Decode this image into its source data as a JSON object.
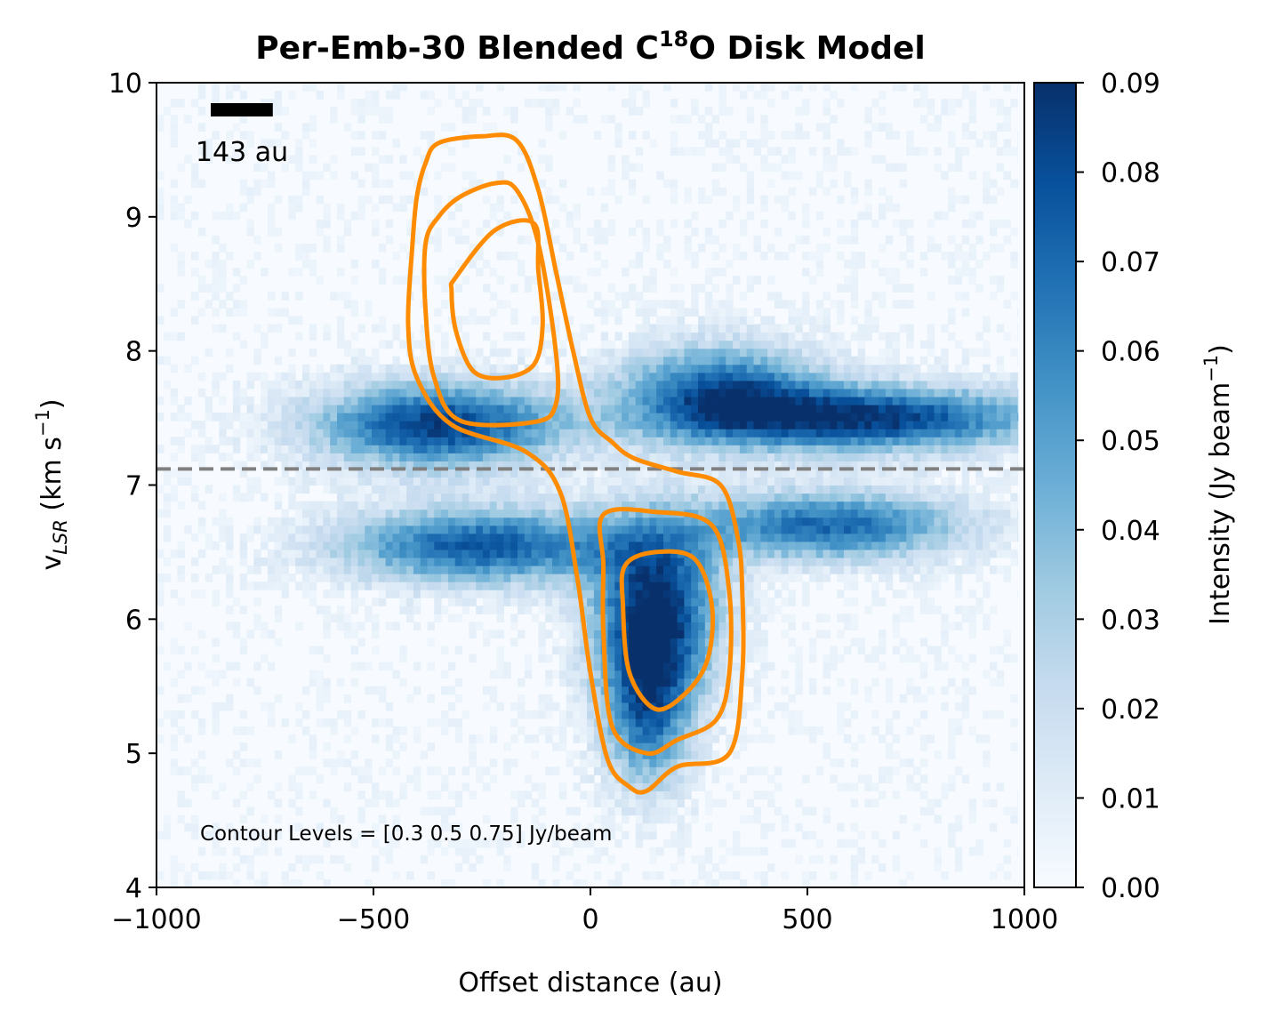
{
  "chart_data": {
    "type": "heatmap",
    "title": {
      "prefix": "Per-Emb-30 Blended C",
      "superscript": "18",
      "suffix": "O Disk Model"
    },
    "xlabel": "Offset distance (au)",
    "ylabel": {
      "main": "v",
      "subscript": "LSR",
      "unit_open": " (km s",
      "unit_exp": "−1",
      "unit_close": ")"
    },
    "xlim": [
      -1000,
      1000
    ],
    "ylim": [
      4,
      10
    ],
    "x_ticks": [
      {
        "value": -1000,
        "label": "−1000"
      },
      {
        "value": -500,
        "label": "−500"
      },
      {
        "value": 0,
        "label": "0"
      },
      {
        "value": 500,
        "label": "500"
      },
      {
        "value": 1000,
        "label": "1000"
      }
    ],
    "y_ticks": [
      {
        "value": 4,
        "label": "4"
      },
      {
        "value": 5,
        "label": "5"
      },
      {
        "value": 6,
        "label": "6"
      },
      {
        "value": 7,
        "label": "7"
      },
      {
        "value": 8,
        "label": "8"
      },
      {
        "value": 9,
        "label": "9"
      },
      {
        "value": 10,
        "label": "10"
      }
    ],
    "colorbar": {
      "label_main": "Intensity (Jy beam",
      "label_exp": "−1",
      "label_close": ")",
      "colormap": "Blues",
      "range": [
        0,
        0.09
      ],
      "ticks": [
        {
          "value": 0.0,
          "label": "0.00"
        },
        {
          "value": 0.01,
          "label": "0.01"
        },
        {
          "value": 0.02,
          "label": "0.02"
        },
        {
          "value": 0.03,
          "label": "0.03"
        },
        {
          "value": 0.04,
          "label": "0.04"
        },
        {
          "value": 0.05,
          "label": "0.05"
        },
        {
          "value": 0.06,
          "label": "0.06"
        },
        {
          "value": 0.07,
          "label": "0.07"
        },
        {
          "value": 0.08,
          "label": "0.08"
        },
        {
          "value": 0.09,
          "label": "0.09"
        }
      ]
    },
    "systemic_velocity": {
      "value": 7.12,
      "style": "dashed",
      "color": "#808080"
    },
    "scale_bar": {
      "length_au": 143,
      "label": "143 au"
    },
    "annotation": "Contour Levels = [0.3  0.5  0.75] Jy/beam",
    "contour_levels": [
      0.3,
      0.5,
      0.75
    ],
    "contour_color": "#ff8c00",
    "emission_components": [
      {
        "name": "upper-left lobe",
        "x": -350,
        "y": 7.45,
        "peak": 0.085
      },
      {
        "name": "upper-right lobe",
        "x": 650,
        "y": 7.5,
        "peak": 0.085
      },
      {
        "name": "upper-right bump",
        "x": 300,
        "y": 7.7,
        "peak": 0.07
      },
      {
        "name": "lower-left lobe",
        "x": -250,
        "y": 6.55,
        "peak": 0.075
      },
      {
        "name": "lower-right lobe",
        "x": 550,
        "y": 6.7,
        "peak": 0.07
      },
      {
        "name": "central peak",
        "x": 150,
        "y": 6.05,
        "peak": 0.09
      },
      {
        "name": "redshifted tail",
        "x": 130,
        "y": 5.3,
        "peak": 0.06
      }
    ],
    "contours": [
      {
        "level": 0.3,
        "points": [
          [
            -350,
            9.55
          ],
          [
            -250,
            9.6
          ],
          [
            -170,
            9.57
          ],
          [
            -120,
            9.2
          ],
          [
            -80,
            8.6
          ],
          [
            -40,
            8.0
          ],
          [
            0,
            7.5
          ],
          [
            50,
            7.32
          ],
          [
            100,
            7.2
          ],
          [
            200,
            7.1
          ],
          [
            300,
            7.0
          ],
          [
            340,
            6.6
          ],
          [
            350,
            6.2
          ],
          [
            350,
            5.6
          ],
          [
            320,
            5.0
          ],
          [
            200,
            4.9
          ],
          [
            130,
            4.72
          ],
          [
            90,
            4.75
          ],
          [
            40,
            4.95
          ],
          [
            0,
            5.6
          ],
          [
            -30,
            6.3
          ],
          [
            -70,
            6.95
          ],
          [
            -150,
            7.25
          ],
          [
            -320,
            7.45
          ],
          [
            -400,
            7.8
          ],
          [
            -420,
            8.2
          ],
          [
            -410,
            8.8
          ],
          [
            -400,
            9.15
          ],
          [
            -380,
            9.4
          ]
        ]
      },
      {
        "level": 0.5,
        "points": [
          [
            -300,
            9.15
          ],
          [
            -220,
            9.25
          ],
          [
            -170,
            9.2
          ],
          [
            -120,
            8.8
          ],
          [
            -80,
            8.0
          ],
          [
            -80,
            7.6
          ],
          [
            -130,
            7.47
          ],
          [
            -300,
            7.48
          ],
          [
            -360,
            7.8
          ],
          [
            -380,
            8.3
          ],
          [
            -380,
            8.8
          ],
          [
            -350,
            9.0
          ]
        ],
        "points2": [
          [
            30,
            6.78
          ],
          [
            150,
            6.8
          ],
          [
            280,
            6.7
          ],
          [
            320,
            6.2
          ],
          [
            320,
            5.6
          ],
          [
            290,
            5.25
          ],
          [
            200,
            5.1
          ],
          [
            130,
            5.0
          ],
          [
            50,
            5.2
          ],
          [
            30,
            5.9
          ],
          [
            30,
            6.4
          ]
        ]
      },
      {
        "level": 0.75,
        "points": [
          [
            -310,
            8.55
          ],
          [
            -220,
            8.9
          ],
          [
            -130,
            8.95
          ],
          [
            -120,
            8.6
          ],
          [
            -110,
            8.2
          ],
          [
            -130,
            7.9
          ],
          [
            -200,
            7.8
          ],
          [
            -270,
            7.85
          ],
          [
            -310,
            8.15
          ],
          [
            -320,
            8.45
          ]
        ],
        "points2": [
          [
            80,
            6.4
          ],
          [
            150,
            6.5
          ],
          [
            240,
            6.45
          ],
          [
            280,
            6.1
          ],
          [
            270,
            5.7
          ],
          [
            220,
            5.45
          ],
          [
            150,
            5.33
          ],
          [
            90,
            5.6
          ],
          [
            75,
            6.1
          ]
        ]
      }
    ]
  }
}
